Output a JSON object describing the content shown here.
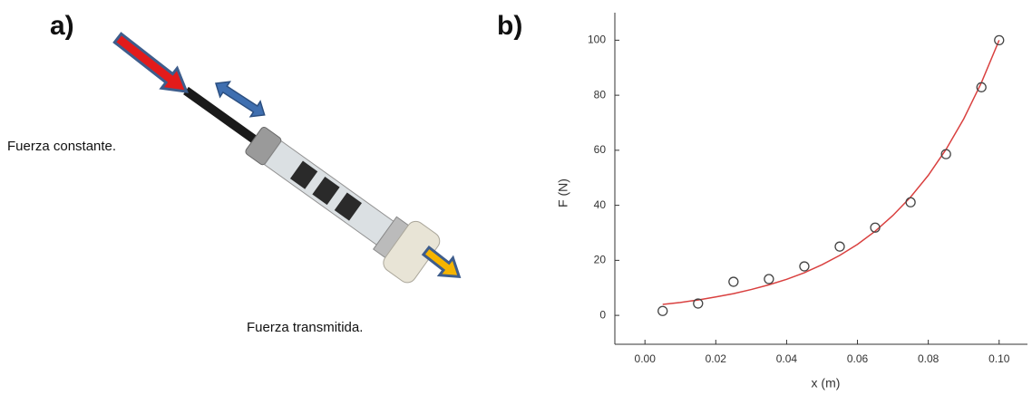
{
  "panel_labels": [
    "a)",
    "b)"
  ],
  "annotations": [
    "Fuerza constante.",
    "Fuerza transmitida."
  ],
  "chart_data": {
    "type": "scatter",
    "xlabel": "x (m)",
    "ylabel": "F (N)",
    "xlim": [
      -0.0085,
      0.108
    ],
    "ylim": [
      -10.5,
      110
    ],
    "xticks": [
      {
        "value": 0,
        "label": "0.00"
      },
      {
        "value": 0.02,
        "label": "0.02"
      },
      {
        "value": 0.04,
        "label": "0.04"
      },
      {
        "value": 0.06,
        "label": "0.06"
      },
      {
        "value": 0.08,
        "label": "0.08"
      },
      {
        "value": 0.1,
        "label": "0.10"
      }
    ],
    "yticks": [
      0,
      20,
      40,
      60,
      80,
      100
    ],
    "series": [
      {
        "color": "#444444",
        "marker": "open-circle",
        "x": [
          0.005,
          0.015,
          0.025,
          0.035,
          0.045,
          0.055,
          0.065,
          0.075,
          0.085,
          0.095,
          0.1
        ],
        "values": [
          1.6,
          4.3,
          12.2,
          13.2,
          17.8,
          25,
          31.9,
          41.1,
          58.6,
          82.9,
          100
        ]
      },
      {
        "color": "#d9403f",
        "marker": "line",
        "x": [
          0.005,
          0.01,
          0.015,
          0.02,
          0.025,
          0.03,
          0.035,
          0.04,
          0.045,
          0.05,
          0.055,
          0.06,
          0.065,
          0.07,
          0.075,
          0.08,
          0.085,
          0.09,
          0.095,
          0.1
        ],
        "values": [
          4.0,
          4.7,
          5.6,
          6.7,
          7.9,
          9.4,
          11.1,
          13.1,
          15.5,
          18.4,
          21.8,
          25.8,
          30.6,
          36.3,
          43.0,
          50.9,
          60.3,
          71.4,
          84.6,
          100
        ]
      }
    ]
  }
}
